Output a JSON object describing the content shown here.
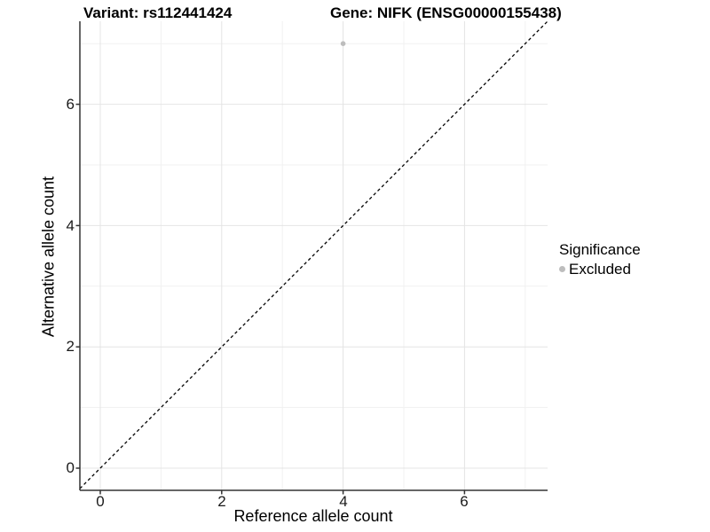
{
  "titles": {
    "variant": "Variant: rs112441424",
    "gene": "Gene: NIFK (ENSG00000155438)"
  },
  "x_axis": {
    "label": "Reference allele count",
    "ticks": [
      "0",
      "2",
      "4",
      "6"
    ]
  },
  "y_axis": {
    "label": "Alternative allele count",
    "ticks": [
      "0",
      "2",
      "4",
      "6"
    ]
  },
  "legend": {
    "title": "Significance",
    "items": [
      {
        "label": "Excluded",
        "color": "#bdbdbd"
      }
    ]
  },
  "chart_data": {
    "type": "scatter",
    "title": "Variant: rs112441424 | Gene: NIFK (ENSG00000155438)",
    "xlabel": "Reference allele count",
    "ylabel": "Alternative allele count",
    "xlim": [
      -0.35,
      7.35
    ],
    "ylim": [
      -0.37,
      7.35
    ],
    "x_ticks": [
      0,
      2,
      4,
      6
    ],
    "y_ticks": [
      0,
      2,
      4,
      6
    ],
    "minor_ticks": [
      1,
      3,
      5,
      7
    ],
    "grid": true,
    "legend_position": "right",
    "series": [
      {
        "name": "Excluded",
        "color": "#bdbdbd",
        "points": [
          {
            "x": 4,
            "y": 7
          }
        ]
      }
    ],
    "reference_line": {
      "slope": 1,
      "intercept": 0,
      "style": "dashed",
      "color": "#000000"
    }
  }
}
